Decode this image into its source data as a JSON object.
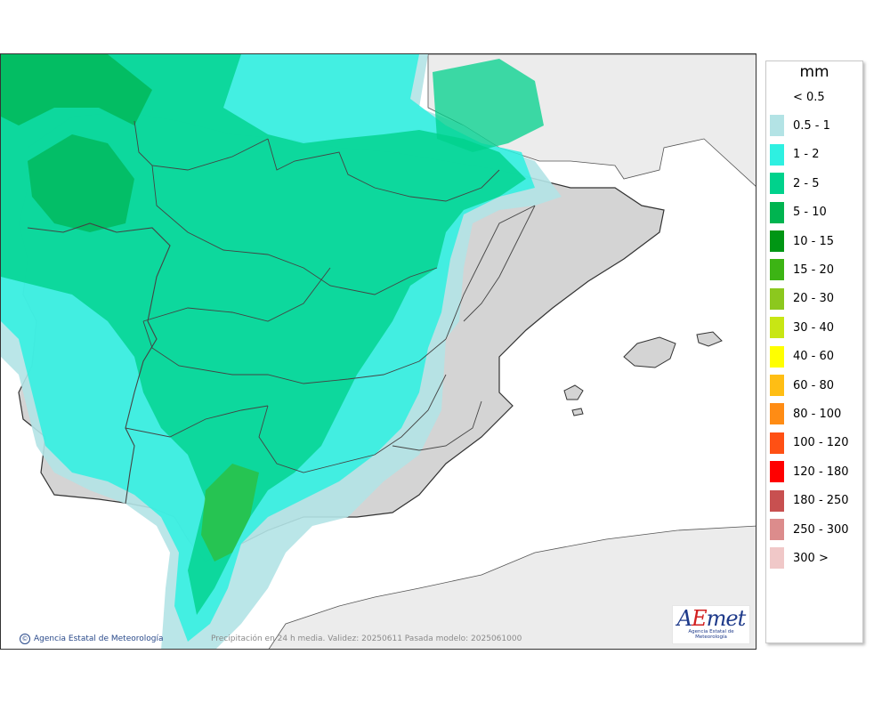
{
  "legend": {
    "unit": "mm",
    "items": [
      {
        "label": "< 0.5",
        "color": "#ffffff"
      },
      {
        "label": "0.5 - 1",
        "color": "#b3e3e5"
      },
      {
        "label": "1 - 2",
        "color": "#2ef0e1"
      },
      {
        "label": "2 - 5",
        "color": "#00d28c"
      },
      {
        "label": "5 - 10",
        "color": "#00b450"
      },
      {
        "label": "10 - 15",
        "color": "#009614"
      },
      {
        "label": "15 - 20",
        "color": "#3cb414"
      },
      {
        "label": "20 - 30",
        "color": "#8cc81e"
      },
      {
        "label": "30 - 40",
        "color": "#c8e614"
      },
      {
        "label": "40 - 60",
        "color": "#ffff00"
      },
      {
        "label": "60 - 80",
        "color": "#ffbe14"
      },
      {
        "label": "80 - 100",
        "color": "#ff8c14"
      },
      {
        "label": "100 - 120",
        "color": "#ff5014"
      },
      {
        "label": "120 - 180",
        "color": "#ff0000"
      },
      {
        "label": "180 - 250",
        "color": "#c85050"
      },
      {
        "label": "250 - 300",
        "color": "#dc8c8c"
      },
      {
        "label": "300 >",
        "color": "#f0c8c8"
      }
    ]
  },
  "credit": "Agencia Estatal de Meteorología",
  "caption": "Precipitación en 24 h media. Validez: 20250611 Pasada modelo: 2025061000",
  "logo": {
    "word_a": "A",
    "word_e": "E",
    "word_rest": "met",
    "sub": "Agencia Estatal de Meteorología"
  },
  "colors": {
    "sea": "#ffffff",
    "land_dry": "#d4d4d4",
    "foreign_land": "#ececec",
    "border": "#333333"
  }
}
